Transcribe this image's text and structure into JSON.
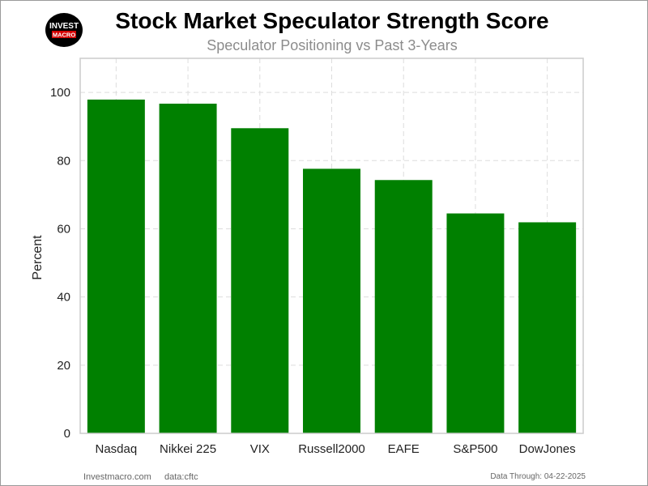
{
  "logo": {
    "line1": "INVEST",
    "line2": "MACRO"
  },
  "colors": {
    "bar": "#008000",
    "grid": "#dddddd",
    "axis": "#cccccc",
    "text": "#222222"
  },
  "chart_data": {
    "type": "bar",
    "title": "Stock Market Speculator Strength Score",
    "subtitle": "Speculator Positioning vs Past 3-Years",
    "xlabel": "",
    "ylabel": "Percent",
    "categories": [
      "Nasdaq",
      "Nikkei 225",
      "VIX",
      "Russell2000",
      "EAFE",
      "S&P500",
      "DowJones"
    ],
    "values": [
      97.9,
      96.7,
      89.5,
      77.6,
      74.3,
      64.5,
      61.9
    ],
    "ylim": [
      0,
      110
    ],
    "yticks": [
      "0",
      "20",
      "40",
      "60",
      "80",
      "100"
    ],
    "grid": true
  },
  "footer": {
    "site": "Investmacro.com",
    "source": "data:cftc",
    "date": "Data Through: 04-22-2025"
  }
}
